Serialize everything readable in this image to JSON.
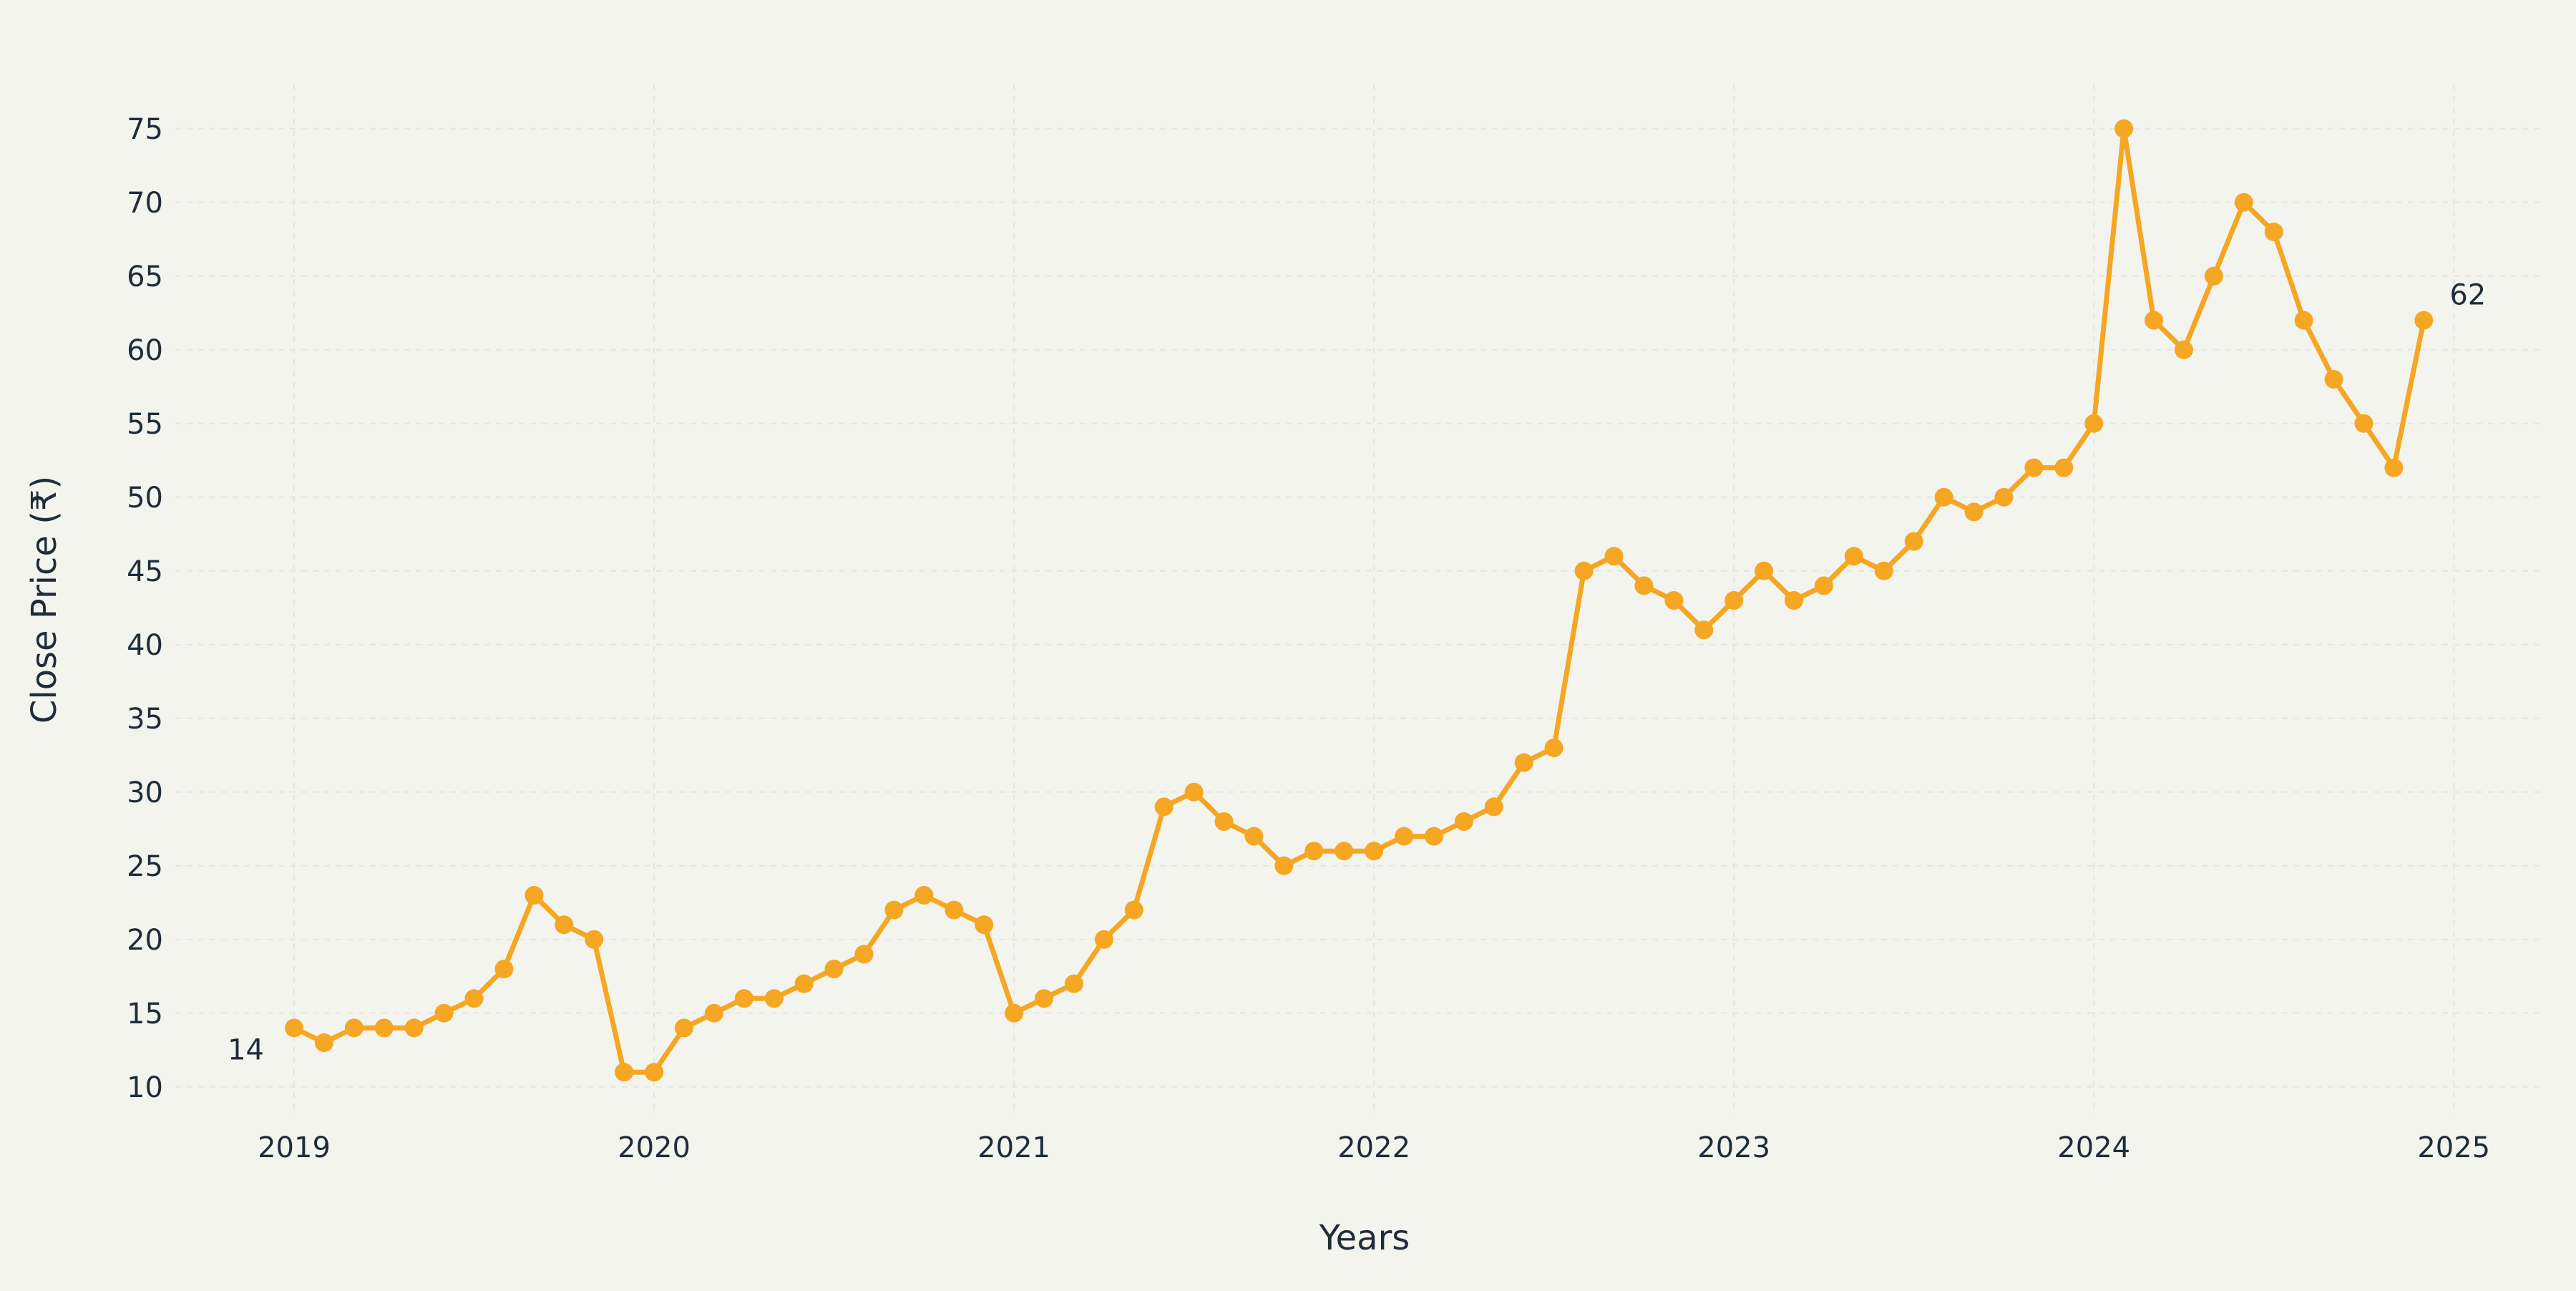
{
  "colors": {
    "background": "#f4f4ef",
    "series": "#f5a623",
    "text": "#1f2d3a",
    "grid": "#e6e6df"
  },
  "chart_data": {
    "type": "line",
    "title": "",
    "xlabel": "Years",
    "ylabel": "Close Price (₹)",
    "xlim": [
      2018.67,
      2025.25
    ],
    "ylim": [
      8,
      78
    ],
    "x_ticks": [
      2019,
      2020,
      2021,
      2022,
      2023,
      2024,
      2025
    ],
    "x_tick_labels": [
      "2019",
      "2020",
      "2021",
      "2022",
      "2023",
      "2024",
      "2025"
    ],
    "y_ticks": [
      10,
      15,
      20,
      25,
      30,
      35,
      40,
      45,
      50,
      55,
      60,
      65,
      70,
      75
    ],
    "y_tick_labels": [
      "10",
      "15",
      "20",
      "25",
      "30",
      "35",
      "40",
      "45",
      "50",
      "55",
      "60",
      "65",
      "70",
      "75"
    ],
    "grid": true,
    "legend": "none",
    "series": [
      {
        "values": [
          14,
          13,
          14,
          14,
          14,
          15,
          16,
          18,
          23,
          21,
          20,
          11,
          11,
          14,
          15,
          16,
          16,
          17,
          18,
          19,
          22,
          23,
          22,
          21,
          15,
          16,
          17,
          20,
          22,
          29,
          30,
          28,
          27,
          25,
          26,
          26,
          26,
          27,
          27,
          28,
          29,
          32,
          33,
          45,
          46,
          44,
          43,
          41,
          43,
          45,
          43,
          44,
          46,
          45,
          47,
          50,
          49,
          50,
          52,
          52,
          55,
          75,
          62,
          60,
          65,
          70,
          68,
          62,
          58,
          55,
          52,
          62
        ]
      }
    ],
    "x_start": 2019,
    "x_step_months": 1,
    "annotations": [
      {
        "text": "14",
        "point_index": 0,
        "position": "left-below"
      },
      {
        "text": "62",
        "point_index": 71,
        "position": "right-above"
      }
    ]
  }
}
